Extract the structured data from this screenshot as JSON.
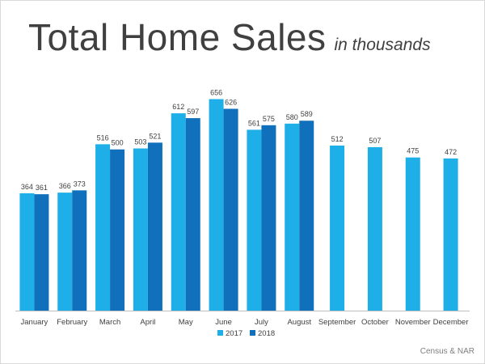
{
  "slide": {
    "title": "Total Home Sales",
    "subtitle": "in thousands",
    "source": "Census & NAR"
  },
  "colors": {
    "series_2017": "#1eaee8",
    "series_2018": "#1070bb",
    "text": "#404040",
    "axis": "#bfbfbf"
  },
  "chart_data": {
    "type": "bar",
    "title": "Total Home Sales",
    "subtitle": "in thousands",
    "xlabel": "",
    "ylabel": "",
    "ylim": [
      0,
      700
    ],
    "grid": false,
    "legend_position": "bottom-center",
    "categories": [
      "January",
      "February",
      "March",
      "April",
      "May",
      "June",
      "July",
      "August",
      "September",
      "October",
      "November",
      "December"
    ],
    "series": [
      {
        "name": "2017",
        "values": [
          364,
          366,
          516,
          503,
          612,
          656,
          561,
          580,
          512,
          507,
          475,
          472
        ]
      },
      {
        "name": "2018",
        "values": [
          361,
          373,
          500,
          521,
          597,
          626,
          575,
          589,
          null,
          null,
          null,
          null
        ]
      }
    ]
  }
}
